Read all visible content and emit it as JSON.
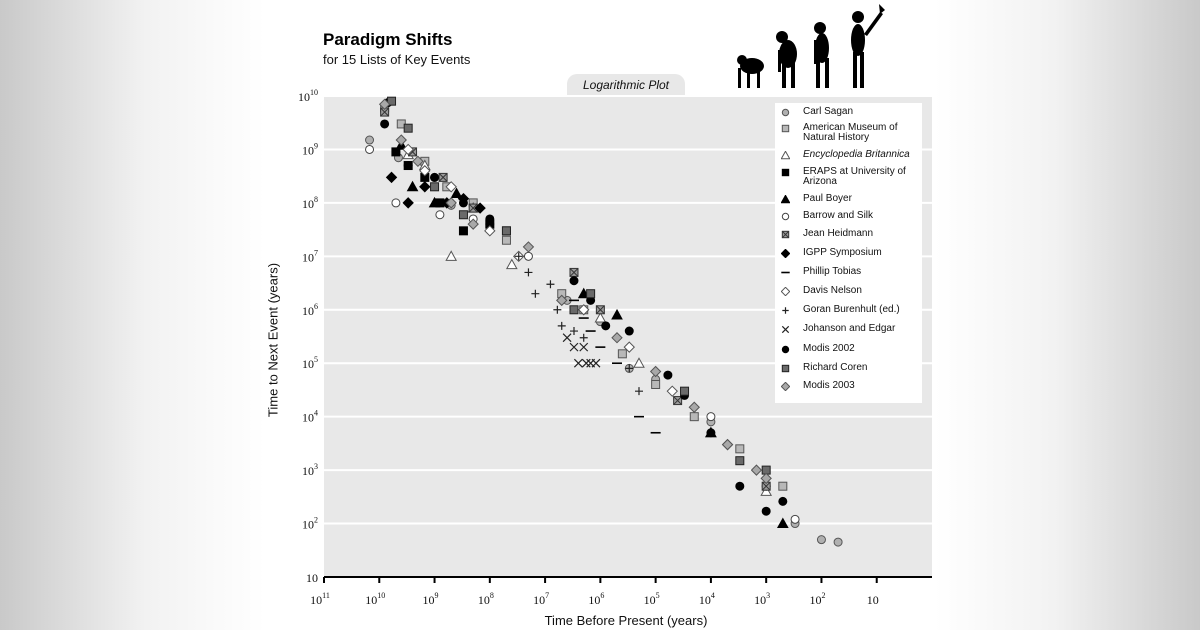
{
  "header": {
    "title": "Paradigm Shifts",
    "subtitle": "for 15 Lists of Key Events",
    "plot_label": "Logarithmic Plot"
  },
  "chart_data": {
    "type": "scatter",
    "title": "Paradigm Shifts",
    "subtitle": "for 15 Lists of Key Events",
    "xlabel": "Time Before Present (years)",
    "ylabel": "Time to Next Event (years)",
    "x_scale": "log-reversed",
    "y_scale": "log",
    "xlim": [
      100000000000,
      1
    ],
    "ylim": [
      10,
      10000000000
    ],
    "x_ticks": [
      {
        "v": 100000000000,
        "base": "10",
        "exp": "11"
      },
      {
        "v": 10000000000,
        "base": "10",
        "exp": "10"
      },
      {
        "v": 1000000000,
        "base": "10",
        "exp": "9"
      },
      {
        "v": 100000000,
        "base": "10",
        "exp": "8"
      },
      {
        "v": 10000000,
        "base": "10",
        "exp": "7"
      },
      {
        "v": 1000000,
        "base": "10",
        "exp": "6"
      },
      {
        "v": 100000,
        "base": "10",
        "exp": "5"
      },
      {
        "v": 10000,
        "base": "10",
        "exp": "4"
      },
      {
        "v": 1000,
        "base": "10",
        "exp": "3"
      },
      {
        "v": 100,
        "base": "10",
        "exp": "2"
      },
      {
        "v": 10,
        "base": "10",
        "exp": ""
      }
    ],
    "y_ticks": [
      {
        "v": 10000000000,
        "base": "10",
        "exp": "10"
      },
      {
        "v": 1000000000,
        "base": "10",
        "exp": "9"
      },
      {
        "v": 100000000,
        "base": "10",
        "exp": "8"
      },
      {
        "v": 10000000,
        "base": "10",
        "exp": "7"
      },
      {
        "v": 1000000,
        "base": "10",
        "exp": "6"
      },
      {
        "v": 100000,
        "base": "10",
        "exp": "5"
      },
      {
        "v": 10000,
        "base": "10",
        "exp": "4"
      },
      {
        "v": 1000,
        "base": "10",
        "exp": "3"
      },
      {
        "v": 100,
        "base": "10",
        "exp": "2"
      },
      {
        "v": 10,
        "base": "10",
        "exp": ""
      }
    ],
    "grid": "horizontal",
    "legend_position": "top-right",
    "series": [
      {
        "name": "Carl Sagan",
        "marker": "circle-grey",
        "points": [
          [
            15000000000,
            1500000000
          ],
          [
            4500000000,
            700000000
          ],
          [
            1000000000,
            300000000
          ],
          [
            500000000,
            90000000
          ],
          [
            100000000,
            40000000
          ],
          [
            4000000,
            1500000
          ],
          [
            1000000,
            600000
          ],
          [
            300000,
            80000
          ],
          [
            100000,
            50000
          ],
          [
            10000,
            8000
          ],
          [
            1000,
            500
          ],
          [
            300,
            100
          ],
          [
            100,
            50
          ],
          [
            50,
            45
          ]
        ]
      },
      {
        "name": "American Museum of Natural History",
        "marker": "square-grey",
        "points": [
          [
            8000000000,
            6000000000
          ],
          [
            4000000000,
            3000000000
          ],
          [
            1500000000,
            600000000
          ],
          [
            600000000,
            200000000
          ],
          [
            200000000,
            100000000
          ],
          [
            50000000,
            20000000
          ],
          [
            5000000,
            2000000
          ],
          [
            2000000,
            1000000
          ],
          [
            400000,
            150000
          ],
          [
            100000,
            40000
          ],
          [
            20000,
            10000
          ],
          [
            3000,
            2500
          ],
          [
            500,
            500
          ]
        ]
      },
      {
        "name": "Encyclopedia Britannica",
        "marker": "triangle-open",
        "points": [
          [
            3000000000,
            800000000
          ],
          [
            1500000000,
            500000000
          ],
          [
            500000000,
            10000000
          ],
          [
            200000000,
            80000000
          ],
          [
            40000000,
            7000000
          ],
          [
            1000000,
            700000
          ],
          [
            200000,
            100000
          ],
          [
            10000,
            5000
          ],
          [
            1000,
            400
          ]
        ]
      },
      {
        "name": "ERAPS at University of Arizona",
        "marker": "square-black",
        "points": [
          [
            5000000000,
            900000000
          ],
          [
            3000000000,
            500000000
          ],
          [
            1500000000,
            300000000
          ],
          [
            800000000,
            100000000
          ],
          [
            300000000,
            30000000
          ],
          [
            100000000,
            40000000
          ]
        ]
      },
      {
        "name": "Paul Boyer",
        "marker": "triangle-black",
        "points": [
          [
            4000000000,
            1200000000
          ],
          [
            2500000000,
            200000000
          ],
          [
            1000000000,
            100000000
          ],
          [
            400000000,
            150000000
          ],
          [
            2000000,
            2000000
          ],
          [
            500000,
            800000
          ],
          [
            10000,
            5000
          ],
          [
            500,
            100
          ]
        ]
      },
      {
        "name": "Barrow and Silk",
        "marker": "circle-open",
        "points": [
          [
            15000000000,
            1000000000
          ],
          [
            5000000000,
            100000000
          ],
          [
            800000000,
            60000000
          ],
          [
            200000000,
            50000000
          ],
          [
            20000000,
            10000000
          ],
          [
            10000,
            10000
          ],
          [
            1000,
            500
          ],
          [
            300,
            120
          ]
        ]
      },
      {
        "name": "Jean Heidmann",
        "marker": "square-cross",
        "points": [
          [
            8000000000,
            5000000000
          ],
          [
            2500000000,
            900000000
          ],
          [
            700000000,
            300000000
          ],
          [
            200000000,
            80000000
          ],
          [
            50000000,
            30000000
          ],
          [
            3000000,
            5000000
          ],
          [
            1000000,
            1000000
          ],
          [
            40000,
            20000
          ],
          [
            1000,
            500
          ]
        ]
      },
      {
        "name": "IGPP Symposium",
        "marker": "diamond-black",
        "points": [
          [
            6000000000,
            300000000
          ],
          [
            3000000000,
            100000000
          ],
          [
            1500000000,
            200000000
          ],
          [
            600000000,
            100000000
          ],
          [
            300000000,
            120000000
          ],
          [
            150000000,
            80000000
          ]
        ]
      },
      {
        "name": "Phillip Tobias",
        "marker": "dash",
        "points": [
          [
            3000000,
            1500000
          ],
          [
            2000000,
            700000
          ],
          [
            1500000,
            400000
          ],
          [
            1000000,
            200000
          ],
          [
            500000,
            100000
          ],
          [
            200000,
            10000
          ],
          [
            100000,
            5000
          ]
        ]
      },
      {
        "name": "Davis Nelson",
        "marker": "diamond-open",
        "points": [
          [
            3000000000,
            1000000000
          ],
          [
            1500000000,
            400000000
          ],
          [
            500000000,
            200000000
          ],
          [
            100000000,
            30000000
          ],
          [
            30000000,
            10000000
          ],
          [
            2000000,
            1000000
          ],
          [
            300000,
            200000
          ],
          [
            50000,
            30000
          ],
          [
            5000,
            3000
          ]
        ]
      },
      {
        "name": "Goran Burenhult (ed.)",
        "marker": "plus",
        "points": [
          [
            30000000,
            10000000
          ],
          [
            20000000,
            5000000
          ],
          [
            15000000,
            2000000
          ],
          [
            8000000,
            3000000
          ],
          [
            6000000,
            1000000
          ],
          [
            5000000,
            500000
          ],
          [
            3000000,
            400000
          ],
          [
            2000000,
            300000
          ],
          [
            300000,
            80000
          ],
          [
            200000,
            30000
          ]
        ]
      },
      {
        "name": "Johanson and Edgar",
        "marker": "x",
        "points": [
          [
            4000000,
            300000
          ],
          [
            3000000,
            200000
          ],
          [
            2500000,
            100000
          ],
          [
            2000000,
            200000
          ],
          [
            1800000,
            100000
          ],
          [
            1500000,
            100000
          ],
          [
            1200000,
            100000
          ]
        ]
      },
      {
        "name": "Modis 2002",
        "marker": "circle-black",
        "points": [
          [
            8000000000,
            3000000000
          ],
          [
            7000000000,
            7500000000
          ],
          [
            3000000000,
            500000000
          ],
          [
            1000000000,
            300000000
          ],
          [
            300000000,
            100000000
          ],
          [
            100000000,
            50000000
          ],
          [
            3000000,
            3500000
          ],
          [
            1500000,
            1500000
          ],
          [
            800000,
            500000
          ],
          [
            300000,
            400000
          ],
          [
            60000,
            60000
          ],
          [
            30000,
            25000
          ],
          [
            10000,
            5000
          ],
          [
            3000,
            500
          ],
          [
            1000,
            170
          ],
          [
            500,
            260
          ]
        ]
      },
      {
        "name": "Richard Coren",
        "marker": "square-dark",
        "points": [
          [
            6000000000,
            8000000000
          ],
          [
            3000000000,
            2500000000
          ],
          [
            1000000000,
            200000000
          ],
          [
            300000000,
            60000000
          ],
          [
            50000000,
            30000000
          ],
          [
            3000000,
            1000000
          ],
          [
            1500000,
            2000000
          ],
          [
            30000,
            30000
          ],
          [
            3000,
            1500
          ],
          [
            1000,
            1000
          ]
        ]
      },
      {
        "name": "Modis 2003",
        "marker": "diamond-grey",
        "points": [
          [
            8000000000,
            7000000000
          ],
          [
            4000000000,
            1500000000
          ],
          [
            2000000000,
            600000000
          ],
          [
            500000000,
            100000000
          ],
          [
            200000000,
            40000000
          ],
          [
            20000000,
            15000000
          ],
          [
            5000000,
            1500000
          ],
          [
            500000,
            300000
          ],
          [
            100000,
            70000
          ],
          [
            20000,
            15000
          ],
          [
            5000,
            3000
          ],
          [
            1500,
            1000
          ],
          [
            1000,
            700
          ]
        ]
      }
    ]
  }
}
